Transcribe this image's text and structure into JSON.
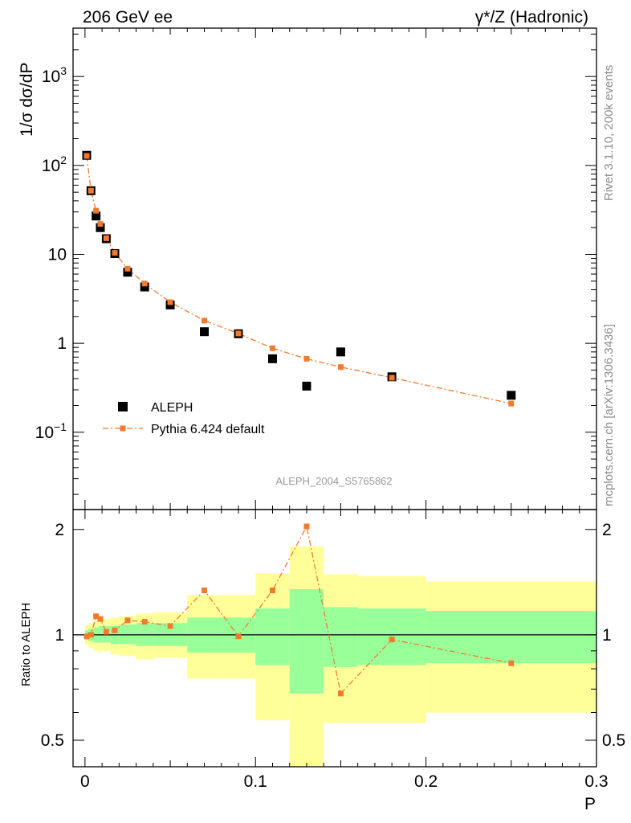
{
  "header": {
    "left": "206 GeV ee",
    "right": "γ*/Z (Hadronic)"
  },
  "side_labels": {
    "rivet": "Rivet 3.1.10,  200k events",
    "mcplots": "mcplots.cern.ch [arXiv:1306.3436]"
  },
  "analysis_tag": "ALEPH_2004_S5765862",
  "colors": {
    "data": "#000000",
    "mc": "#f07b2e",
    "band_inner": "#99ff99",
    "band_outer": "#ffff99"
  },
  "chart_data": [
    {
      "type": "scatter",
      "panel": "main",
      "ylabel": "1/σ  dσ/dP",
      "xlim": [
        -0.007,
        0.3
      ],
      "ylim": [
        0.0135,
        3500
      ],
      "yscale": "log",
      "y_ticks": [
        {
          "v": 1000,
          "label": "10",
          "sup": "3"
        },
        {
          "v": 100,
          "label": "10",
          "sup": "2"
        },
        {
          "v": 10,
          "label": "10",
          "sup": ""
        },
        {
          "v": 1,
          "label": "1",
          "sup": ""
        },
        {
          "v": 0.1,
          "label": "10",
          "sup": "−1"
        }
      ],
      "legend": {
        "position": "bottom-left",
        "entries": [
          {
            "series": "data",
            "label": "ALEPH"
          },
          {
            "series": "mc",
            "label": "Pythia 6.424 default"
          }
        ]
      },
      "series": [
        {
          "name": "ALEPH",
          "style": "square-markers",
          "x": [
            0.001,
            0.0035,
            0.0065,
            0.009,
            0.0125,
            0.0175,
            0.025,
            0.035,
            0.05,
            0.07,
            0.09,
            0.11,
            0.13,
            0.15,
            0.18,
            0.25
          ],
          "y": [
            130,
            52,
            27,
            20,
            15,
            10.2,
            6.3,
            4.3,
            2.7,
            1.35,
            1.28,
            0.67,
            0.33,
            0.8,
            0.42,
            0.26
          ]
        },
        {
          "name": "Pythia 6.424 default",
          "style": "dash-dot-line-with-markers",
          "x": [
            0.001,
            0.0035,
            0.0065,
            0.009,
            0.0125,
            0.0175,
            0.025,
            0.035,
            0.05,
            0.07,
            0.09,
            0.11,
            0.13,
            0.15,
            0.18,
            0.25
          ],
          "y": [
            128,
            52,
            31,
            22,
            15.2,
            10.4,
            6.9,
            4.7,
            2.9,
            1.8,
            1.29,
            0.88,
            0.67,
            0.54,
            0.41,
            0.21
          ]
        }
      ]
    },
    {
      "type": "line",
      "panel": "ratio",
      "xlabel": "P",
      "ylabel": "Ratio to ALEPH",
      "xlim": [
        -0.007,
        0.3
      ],
      "ylim": [
        0.42,
        2.28
      ],
      "yscale": "log",
      "x_ticks": [
        0,
        0.1,
        0.2,
        0.3
      ],
      "x_tick_labels": [
        "0",
        "0.1",
        "0.2",
        "0.3"
      ],
      "y_ticks": [
        0.5,
        1,
        2
      ],
      "y_tick_labels": [
        "0.5",
        "1",
        "2"
      ],
      "reference_line": 1,
      "uncertainty_bands": [
        {
          "x0": 0.0,
          "x1": 0.002,
          "inner": [
            0.97,
            1.03
          ],
          "outer": [
            0.94,
            1.06
          ]
        },
        {
          "x0": 0.002,
          "x1": 0.005,
          "inner": [
            0.96,
            1.04
          ],
          "outer": [
            0.92,
            1.08
          ]
        },
        {
          "x0": 0.005,
          "x1": 0.008,
          "inner": [
            0.95,
            1.05
          ],
          "outer": [
            0.9,
            1.1
          ]
        },
        {
          "x0": 0.008,
          "x1": 0.01,
          "inner": [
            0.95,
            1.06
          ],
          "outer": [
            0.89,
            1.12
          ]
        },
        {
          "x0": 0.01,
          "x1": 0.015,
          "inner": [
            0.95,
            1.06
          ],
          "outer": [
            0.9,
            1.11
          ]
        },
        {
          "x0": 0.015,
          "x1": 0.02,
          "inner": [
            0.94,
            1.06
          ],
          "outer": [
            0.88,
            1.12
          ]
        },
        {
          "x0": 0.02,
          "x1": 0.03,
          "inner": [
            0.94,
            1.07
          ],
          "outer": [
            0.87,
            1.13
          ]
        },
        {
          "x0": 0.03,
          "x1": 0.04,
          "inner": [
            0.93,
            1.08
          ],
          "outer": [
            0.85,
            1.15
          ]
        },
        {
          "x0": 0.04,
          "x1": 0.06,
          "inner": [
            0.93,
            1.08
          ],
          "outer": [
            0.86,
            1.16
          ]
        },
        {
          "x0": 0.06,
          "x1": 0.08,
          "inner": [
            0.89,
            1.12
          ],
          "outer": [
            0.75,
            1.3
          ]
        },
        {
          "x0": 0.08,
          "x1": 0.1,
          "inner": [
            0.89,
            1.12
          ],
          "outer": [
            0.75,
            1.3
          ]
        },
        {
          "x0": 0.1,
          "x1": 0.12,
          "inner": [
            0.82,
            1.19
          ],
          "outer": [
            0.57,
            1.5
          ]
        },
        {
          "x0": 0.12,
          "x1": 0.14,
          "inner": [
            0.68,
            1.35
          ],
          "outer": [
            0.3,
            1.79
          ]
        },
        {
          "x0": 0.14,
          "x1": 0.16,
          "inner": [
            0.81,
            1.2
          ],
          "outer": [
            0.56,
            1.49
          ]
        },
        {
          "x0": 0.16,
          "x1": 0.2,
          "inner": [
            0.82,
            1.19
          ],
          "outer": [
            0.56,
            1.47
          ]
        },
        {
          "x0": 0.2,
          "x1": 0.3,
          "inner": [
            0.83,
            1.17
          ],
          "outer": [
            0.6,
            1.42
          ]
        }
      ],
      "series": [
        {
          "name": "Pythia 6.424 default",
          "style": "dash-dot-line-with-markers",
          "x": [
            0.001,
            0.0035,
            0.0065,
            0.009,
            0.0125,
            0.0175,
            0.025,
            0.035,
            0.05,
            0.07,
            0.09,
            0.11,
            0.13,
            0.15,
            0.18,
            0.25
          ],
          "y": [
            0.99,
            1.0,
            1.13,
            1.11,
            1.02,
            1.03,
            1.1,
            1.09,
            1.06,
            1.34,
            0.99,
            1.34,
            2.04,
            0.68,
            0.97,
            0.83
          ]
        }
      ]
    }
  ]
}
